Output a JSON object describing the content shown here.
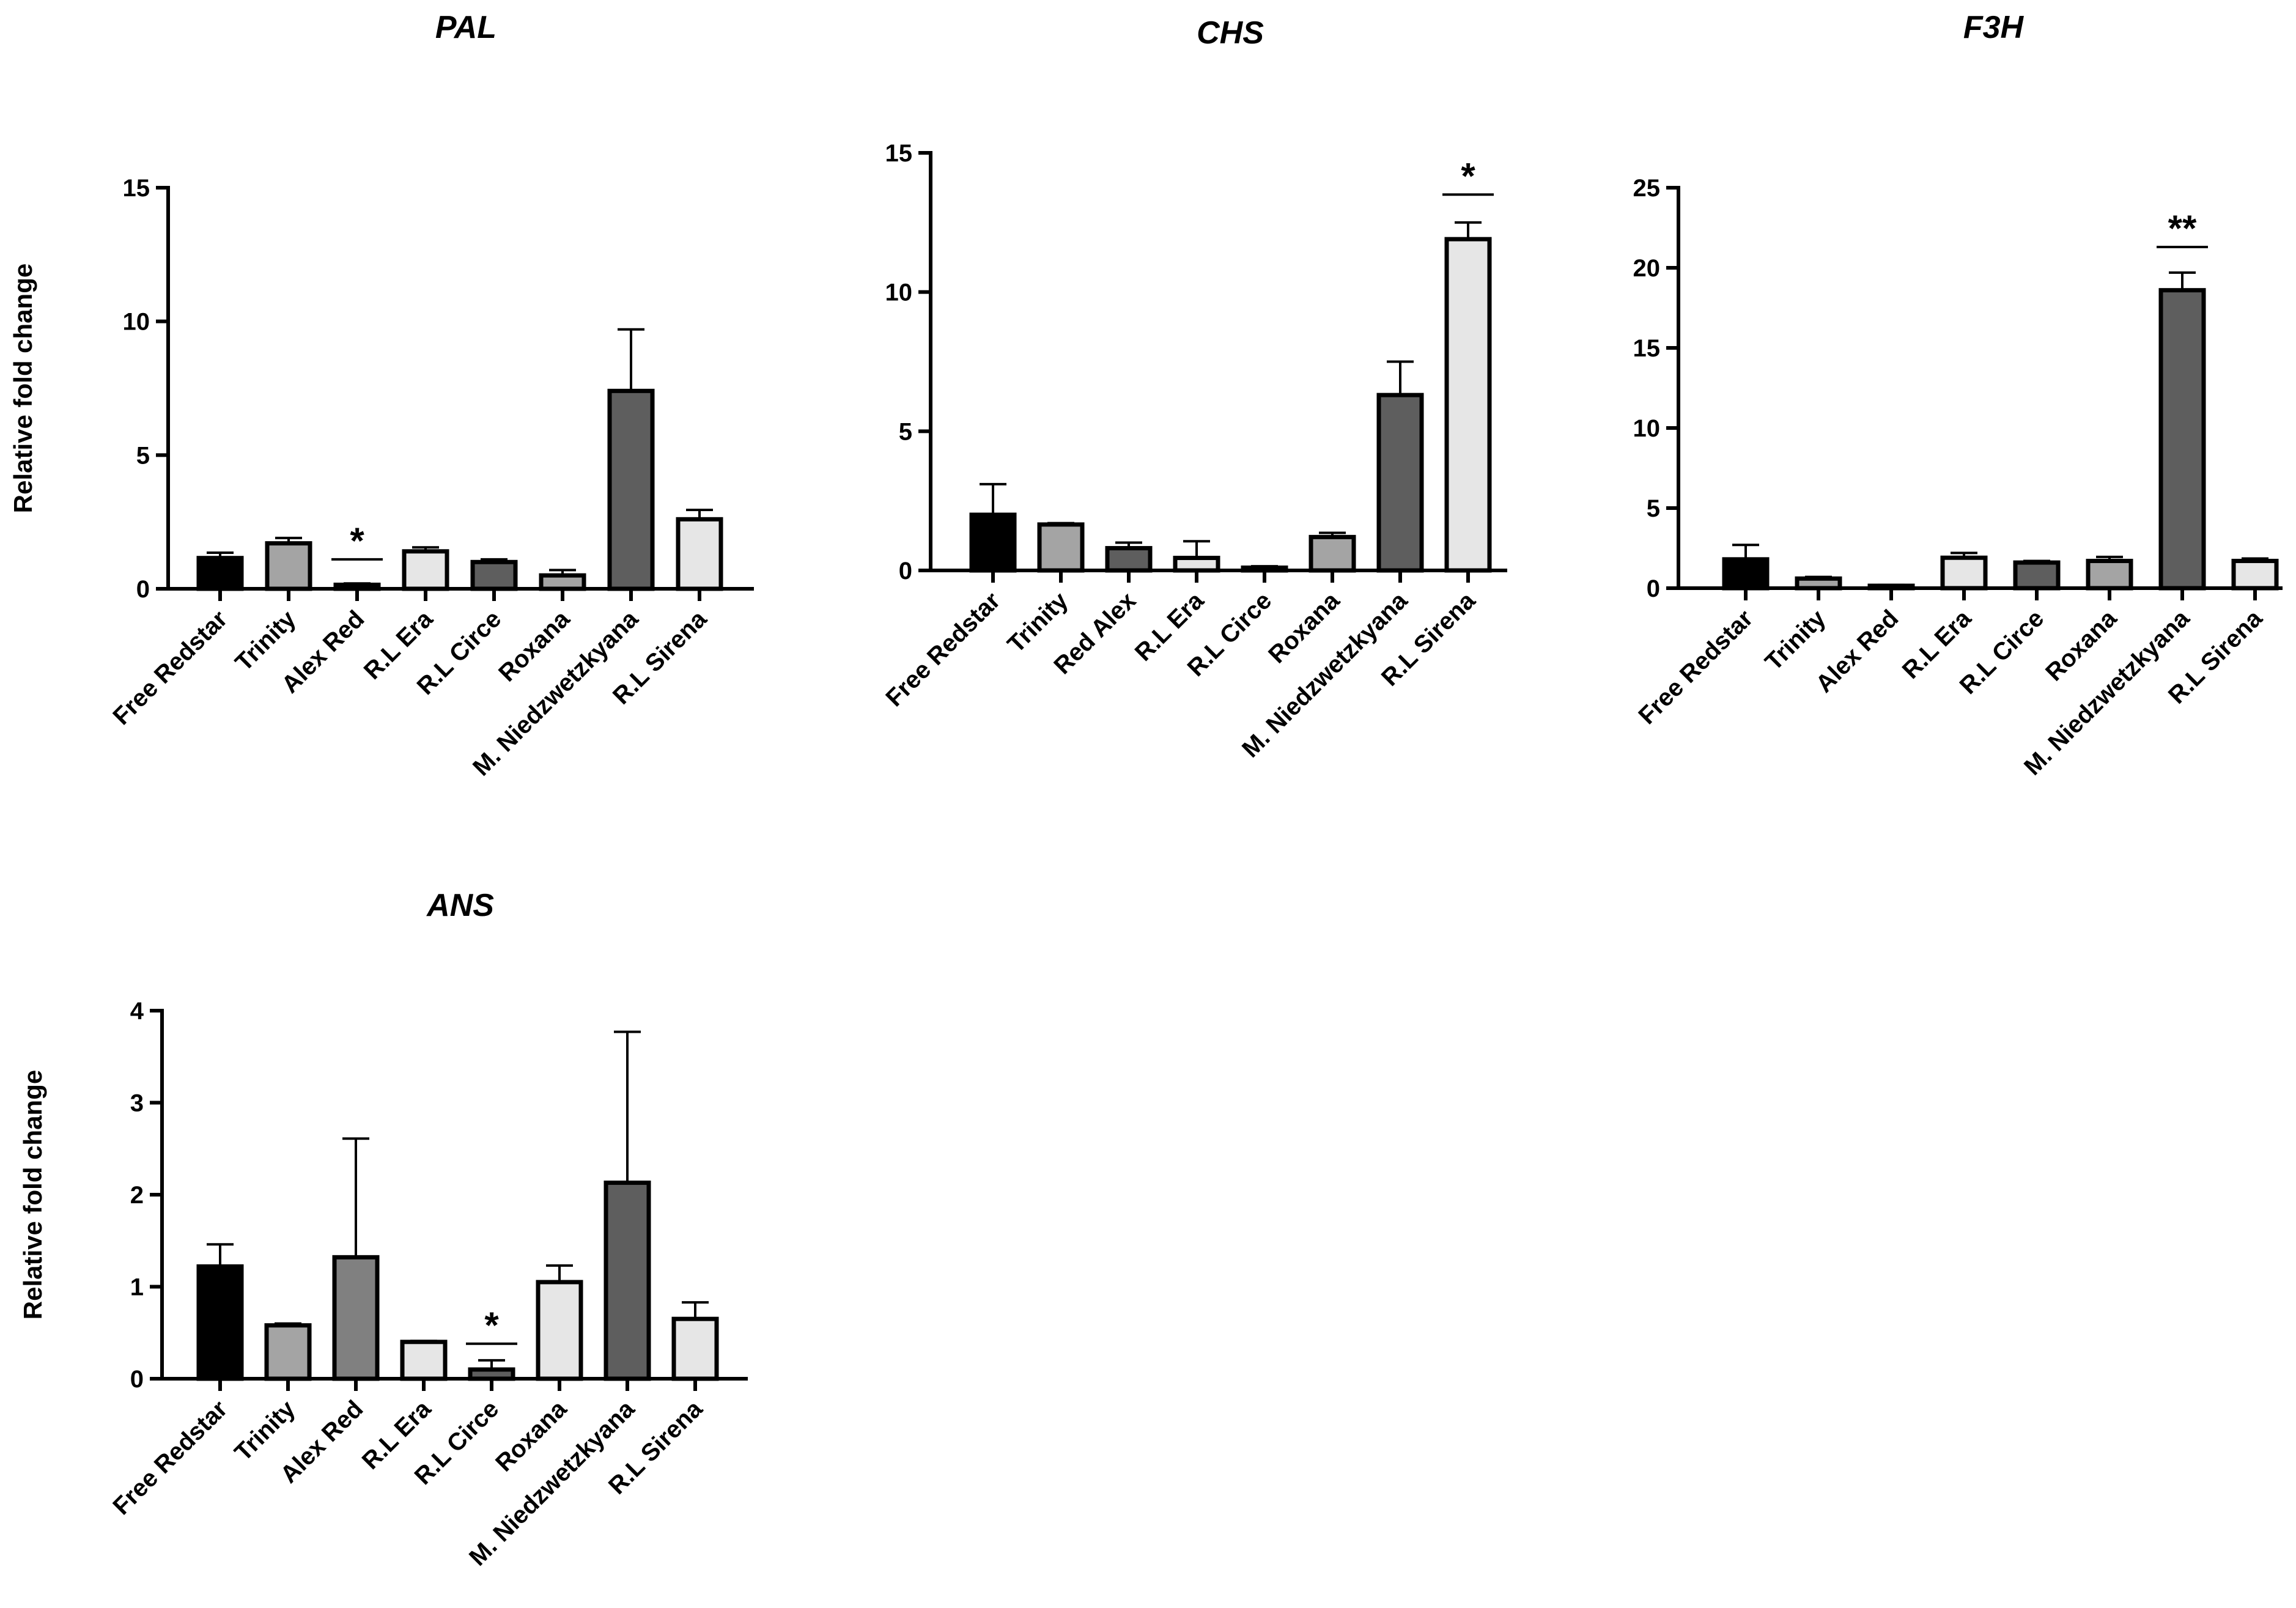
{
  "colors": {
    "black": "#000000",
    "gray_light": "#a4a4a4",
    "gray_dark": "#5e5e5e",
    "gray_mid": "#808080",
    "very_light": "#e6e6e6"
  },
  "chart_data": [
    {
      "type": "bar",
      "title": "PAL",
      "ylabel": "Relative fold change",
      "ylim": [
        0,
        15
      ],
      "yticks": [
        "0",
        "5",
        "10",
        "15"
      ],
      "categories": [
        "Free Redstar",
        "Trinity",
        "Alex Red",
        "R.L Era",
        "R.L Circe",
        "Roxana",
        "M. Niedzwetzkyana",
        "R.L Sirena"
      ],
      "values": [
        1.15,
        1.7,
        0.15,
        1.4,
        1.0,
        0.5,
        7.4,
        2.6
      ],
      "errors": [
        0.2,
        0.2,
        0.05,
        0.15,
        0.1,
        0.2,
        2.3,
        0.35
      ],
      "colors": [
        "#000000",
        "#a4a4a4",
        "#5e5e5e",
        "#e6e6e6",
        "#5e5e5e",
        "#a4a4a4",
        "#5e5e5e",
        "#e6e6e6"
      ],
      "significance": [
        {
          "index": 2,
          "label": "*",
          "y": 1.1
        }
      ]
    },
    {
      "type": "bar",
      "title": "CHS",
      "ylabel": "",
      "ylim": [
        0,
        15
      ],
      "yticks": [
        "0",
        "5",
        "10",
        "15"
      ],
      "categories": [
        "Free Redstar",
        "Trinity",
        "Red Alex",
        "R.L Era",
        "R.L Circe",
        "Roxana",
        "M. Niedzwetzkyana",
        "R.L Sirena"
      ],
      "values": [
        2.0,
        1.65,
        0.8,
        0.45,
        0.1,
        1.2,
        6.3,
        11.9
      ],
      "errors": [
        1.1,
        0.05,
        0.2,
        0.6,
        0.05,
        0.15,
        1.2,
        0.6
      ],
      "colors": [
        "#000000",
        "#a4a4a4",
        "#5e5e5e",
        "#e6e6e6",
        "#5e5e5e",
        "#a4a4a4",
        "#5e5e5e",
        "#e6e6e6"
      ],
      "significance": [
        {
          "index": 7,
          "label": "*",
          "y": 13.5
        }
      ]
    },
    {
      "type": "bar",
      "title": "F3H",
      "ylabel": "",
      "ylim": [
        0,
        25
      ],
      "yticks": [
        "0",
        "5",
        "10",
        "15",
        "20",
        "25"
      ],
      "categories": [
        "Free Redstar",
        "Trinity",
        "Alex Red",
        "R.L Era",
        "R.L Circe",
        "Roxana",
        "M. Niedzwetzkyana",
        "R.L Sirena"
      ],
      "values": [
        1.8,
        0.6,
        0.15,
        1.9,
        1.6,
        1.7,
        18.6,
        1.7
      ],
      "errors": [
        0.9,
        0.1,
        0.05,
        0.3,
        0.1,
        0.25,
        1.1,
        0.15
      ],
      "colors": [
        "#000000",
        "#a4a4a4",
        "#5e5e5e",
        "#e6e6e6",
        "#5e5e5e",
        "#a4a4a4",
        "#5e5e5e",
        "#e6e6e6"
      ],
      "significance": [
        {
          "index": 6,
          "label": "**",
          "y": 21.3
        }
      ]
    },
    {
      "type": "bar",
      "title": "ANS",
      "ylabel": "Relative fold change",
      "ylim": [
        0,
        4
      ],
      "yticks": [
        "0",
        "1",
        "2",
        "3",
        "4"
      ],
      "categories": [
        "Free Redstar",
        "Trinity",
        "Alex Red",
        "R.L Era",
        "R.L Circe",
        "Roxana",
        "M. Niedzwetzkyana",
        "R.L Sirena"
      ],
      "values": [
        1.22,
        0.58,
        1.32,
        0.4,
        0.1,
        1.05,
        2.13,
        0.65
      ],
      "errors": [
        0.24,
        0.02,
        1.29,
        0.01,
        0.1,
        0.18,
        1.64,
        0.18
      ],
      "colors": [
        "#000000",
        "#a4a4a4",
        "#808080",
        "#e6e6e6",
        "#5e5e5e",
        "#e6e6e6",
        "#5e5e5e",
        "#e6e6e6"
      ],
      "significance": [
        {
          "index": 4,
          "label": "*",
          "y": 0.38
        }
      ]
    }
  ]
}
